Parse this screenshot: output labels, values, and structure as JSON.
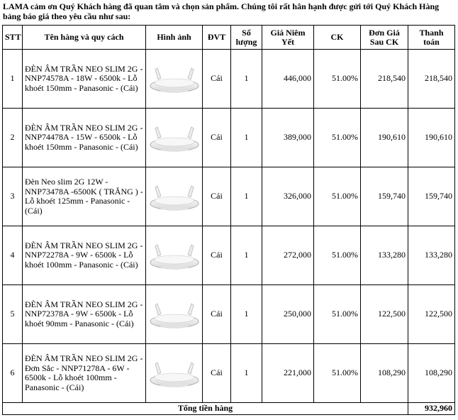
{
  "intro": "LAMA cảm ơn Quý Khách hàng đã quan tâm và chọn sản phẩm. Chúng tôi rất hân hạnh được gửi tới Quý Khách Hàng bảng báo giá theo yêu cầu như sau:",
  "headers": {
    "stt": "STT",
    "name": "Tên hàng và quy cách",
    "image": "Hình ảnh",
    "unit": "ĐVT",
    "qty": "Số lượng",
    "price": "Giá Niêm Yết",
    "discount": "CK",
    "unit_price": "Đơn Giá Sau CK",
    "total": "Thanh toán"
  },
  "rows": [
    {
      "stt": "1",
      "name": "ĐÈN ÂM TRẦN NEO SLIM 2G - NNP74578A - 18W - 6500k - Lỗ khoét 150mm - Panasonic - (Cái)",
      "image": "recessed-downlight-photo",
      "unit": "Cái",
      "qty": "1",
      "price": "446,000",
      "discount": "51.00%",
      "unit_price": "218,540",
      "total": "218,540"
    },
    {
      "stt": "2",
      "name": "ĐÈN ÂM TRẦN NEO SLIM 2G - NNP74478A - 15W - 6500k - Lỗ khoét 150mm - Panasonic - (Cái)",
      "image": "recessed-downlight-photo",
      "unit": "Cái",
      "qty": "1",
      "price": "389,000",
      "discount": "51.00%",
      "unit_price": "190,610",
      "total": "190,610"
    },
    {
      "stt": "3",
      "name": "Đèn Neo slim 2G 12W - NNP73478A -6500K ( TRẮNG ) - Lỗ khoét 125mm - Panasonic - (Cái)",
      "image": "recessed-downlight-photo",
      "unit": "Cái",
      "qty": "1",
      "price": "326,000",
      "discount": "51.00%",
      "unit_price": "159,740",
      "total": "159,740"
    },
    {
      "stt": "4",
      "name": "ĐÈN ÂM TRẦN NEO SLIM 2G - NNP72278A - 9W - 6500k - Lỗ khoét 100mm - Panasonic - (Cái)",
      "image": "recessed-downlight-photo",
      "unit": "Cái",
      "qty": "1",
      "price": "272,000",
      "discount": "51.00%",
      "unit_price": "133,280",
      "total": "133,280"
    },
    {
      "stt": "5",
      "name": "ĐÈN ÂM TRẦN NEO SLIM 2G - NNP72378A - 9W - 6500k - Lỗ khoét 90mm - Panasonic - (Cái)",
      "image": "recessed-downlight-photo",
      "unit": "Cái",
      "qty": "1",
      "price": "250,000",
      "discount": "51.00%",
      "unit_price": "122,500",
      "total": "122,500"
    },
    {
      "stt": "6",
      "name": "ĐÈN ÂM TRẦN NEO SLIM 2G - Đơn Sắc - NNP71278A - 6W - 6500k - Lỗ khoét 100mm - Panasonic - (Cái)",
      "image": "recessed-downlight-photo",
      "unit": "Cái",
      "qty": "1",
      "price": "221,000",
      "discount": "51.00%",
      "unit_price": "108,290",
      "total": "108,290"
    }
  ],
  "footer": {
    "label": "Tổng tiền hàng",
    "total": "932,960"
  }
}
